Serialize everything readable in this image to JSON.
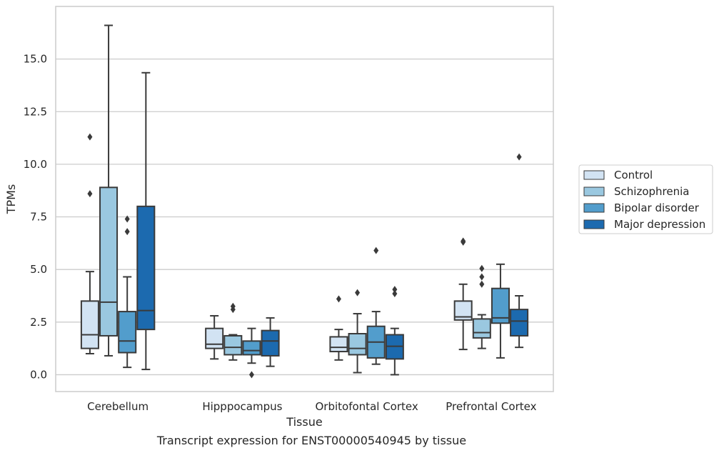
{
  "chart_data": {
    "type": "box",
    "title": "",
    "caption": "Transcript expression for ENST00000540945 by tissue",
    "xlabel": "Tissue",
    "ylabel": "TPMs",
    "ylim": [
      -0.8,
      17.5
    ],
    "yticks": [
      0.0,
      2.5,
      5.0,
      7.5,
      10.0,
      12.5,
      15.0
    ],
    "ytick_labels": [
      "0.0",
      "2.5",
      "5.0",
      "7.5",
      "10.0",
      "12.5",
      "15.0"
    ],
    "grid": "horizontal",
    "legend_position": "right",
    "categories": [
      "Cerebellum",
      "Hipppocampus",
      "Orbitofontal Cortex",
      "Prefrontal Cortex"
    ],
    "series": [
      {
        "name": "Control",
        "color": "#d2e3f3",
        "boxes": [
          {
            "whislo": 1.0,
            "q1": 1.25,
            "med": 1.9,
            "q3": 3.5,
            "whishi": 4.9,
            "fliers": [
              11.3,
              8.6
            ]
          },
          {
            "whislo": 0.75,
            "q1": 1.25,
            "med": 1.45,
            "q3": 2.2,
            "whishi": 2.8,
            "fliers": []
          },
          {
            "whislo": 0.7,
            "q1": 1.1,
            "med": 1.3,
            "q3": 1.8,
            "whishi": 2.15,
            "fliers": [
              3.6
            ]
          },
          {
            "whislo": 1.2,
            "q1": 2.6,
            "med": 2.75,
            "q3": 3.5,
            "whishi": 4.3,
            "fliers": [
              6.35,
              6.3
            ]
          }
        ]
      },
      {
        "name": "Schizophrenia",
        "color": "#9ac8e0",
        "boxes": [
          {
            "whislo": 0.9,
            "q1": 1.85,
            "med": 3.45,
            "q3": 8.9,
            "whishi": 16.6,
            "fliers": []
          },
          {
            "whislo": 0.7,
            "q1": 0.95,
            "med": 1.3,
            "q3": 1.85,
            "whishi": 1.9,
            "fliers": [
              3.25,
              3.1
            ]
          },
          {
            "whislo": 0.1,
            "q1": 0.95,
            "med": 1.25,
            "q3": 1.95,
            "whishi": 2.9,
            "fliers": [
              3.9
            ]
          },
          {
            "whislo": 1.25,
            "q1": 1.75,
            "med": 2.0,
            "q3": 2.65,
            "whishi": 2.85,
            "fliers": [
              5.05,
              4.65,
              4.3
            ]
          }
        ]
      },
      {
        "name": "Bipolar disorder",
        "color": "#529dcc",
        "boxes": [
          {
            "whislo": 0.35,
            "q1": 1.05,
            "med": 1.6,
            "q3": 3.0,
            "whishi": 4.65,
            "fliers": [
              7.4,
              6.8
            ]
          },
          {
            "whislo": 0.55,
            "q1": 0.95,
            "med": 1.15,
            "q3": 1.6,
            "whishi": 2.2,
            "fliers": [
              0.0
            ]
          },
          {
            "whislo": 0.5,
            "q1": 0.8,
            "med": 1.55,
            "q3": 2.3,
            "whishi": 3.0,
            "fliers": [
              5.9
            ]
          },
          {
            "whislo": 0.8,
            "q1": 2.45,
            "med": 2.7,
            "q3": 4.1,
            "whishi": 5.25,
            "fliers": []
          }
        ]
      },
      {
        "name": "Major depression",
        "color": "#1c6aaf",
        "boxes": [
          {
            "whislo": 0.25,
            "q1": 2.15,
            "med": 3.05,
            "q3": 8.0,
            "whishi": 14.35,
            "fliers": []
          },
          {
            "whislo": 0.4,
            "q1": 0.9,
            "med": 1.6,
            "q3": 2.1,
            "whishi": 2.7,
            "fliers": []
          },
          {
            "whislo": 0.0,
            "q1": 0.75,
            "med": 1.35,
            "q3": 1.9,
            "whishi": 2.2,
            "fliers": [
              4.05,
              3.85
            ]
          },
          {
            "whislo": 1.3,
            "q1": 1.85,
            "med": 2.55,
            "q3": 3.1,
            "whishi": 3.75,
            "fliers": [
              10.35
            ]
          }
        ]
      }
    ]
  }
}
